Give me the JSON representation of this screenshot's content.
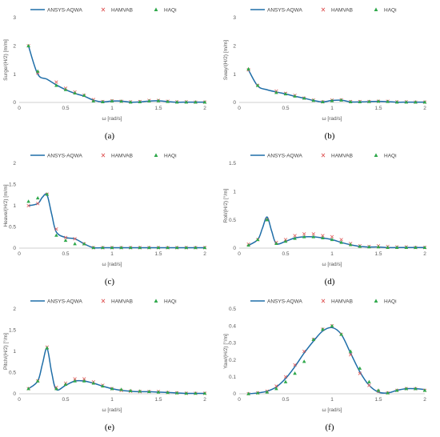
{
  "colors": {
    "aqwa": "#1f6ea8",
    "hamvab": "#e05a5a",
    "haqi": "#2ea84a",
    "axis": "#bfbfbf",
    "text": "#595959"
  },
  "legend": [
    "ANSYS-AQWA",
    "HAMVAB",
    "HAQi"
  ],
  "chart_data": [
    {
      "type": "line",
      "caption": "(a)",
      "xlabel": "ω [rad/s]",
      "ylabel": "Surge/(H/2) [m/m]",
      "xlim": [
        0,
        2
      ],
      "ylim": [
        0,
        3
      ],
      "xticks": [
        0,
        0.5,
        1,
        1.5,
        2
      ],
      "xtick_labels": [
        "0",
        "0.5",
        "1",
        "1.5",
        "2"
      ],
      "yticks": [
        0,
        1,
        2,
        3
      ],
      "ytick_labels": [
        "0",
        "1",
        "2",
        "3"
      ],
      "series": [
        {
          "name": "ANSYS-AQWA",
          "style": "line",
          "x": [
            0.1,
            0.2,
            0.3,
            0.4,
            0.5,
            0.6,
            0.7,
            0.8,
            0.9,
            1.0,
            1.1,
            1.2,
            1.3,
            1.4,
            1.5,
            1.6,
            1.7,
            1.8,
            1.9,
            2.0
          ],
          "y": [
            2.0,
            1.0,
            0.82,
            0.62,
            0.45,
            0.32,
            0.22,
            0.08,
            0.02,
            0.05,
            0.05,
            0.01,
            0.02,
            0.05,
            0.06,
            0.03,
            0.01,
            0.01,
            0.01,
            0.01
          ]
        },
        {
          "name": "HAMVAB",
          "style": "x",
          "x": [
            0.1,
            0.2,
            0.4,
            0.5,
            0.6,
            0.7,
            0.8,
            0.9,
            1.0,
            1.1,
            1.2,
            1.3,
            1.4,
            1.5,
            1.6,
            1.7,
            1.8,
            1.9,
            2.0
          ],
          "y": [
            2.0,
            1.05,
            0.72,
            0.5,
            0.37,
            0.25,
            0.1,
            0.03,
            0.06,
            0.04,
            0.02,
            0.03,
            0.07,
            0.07,
            0.04,
            0.02,
            0.02,
            0.01,
            0.01
          ]
        },
        {
          "name": "HAQi",
          "style": "triangle",
          "x": [
            0.1,
            0.2,
            0.4,
            0.5,
            0.6,
            0.7,
            0.8,
            0.9,
            1.0,
            1.1,
            1.2,
            1.3,
            1.4,
            1.5,
            1.6,
            1.7,
            1.8,
            1.9,
            2.0
          ],
          "y": [
            2.0,
            1.1,
            0.6,
            0.45,
            0.33,
            0.25,
            0.05,
            0.02,
            0.05,
            0.04,
            0.01,
            0.02,
            0.05,
            0.06,
            0.03,
            0.01,
            0.01,
            0.01,
            0.01
          ]
        }
      ]
    },
    {
      "type": "line",
      "caption": "(b)",
      "xlabel": "ω [rad/s]",
      "ylabel": "Sway/(H/2) [m/m]",
      "xlim": [
        0,
        2
      ],
      "ylim": [
        0,
        3
      ],
      "xticks": [
        0,
        0.5,
        1,
        1.5,
        2
      ],
      "xtick_labels": [
        "0",
        "0.5",
        "1",
        "1.5",
        "2"
      ],
      "yticks": [
        0,
        1,
        2,
        3
      ],
      "ytick_labels": [
        "0",
        "1",
        "2",
        "3"
      ],
      "series": [
        {
          "name": "ANSYS-AQWA",
          "style": "line",
          "x": [
            0.1,
            0.2,
            0.3,
            0.4,
            0.5,
            0.6,
            0.7,
            0.8,
            0.9,
            1.0,
            1.1,
            1.2,
            1.3,
            1.4,
            1.5,
            1.6,
            1.7,
            1.8,
            1.9,
            2.0
          ],
          "y": [
            1.15,
            0.58,
            0.45,
            0.37,
            0.3,
            0.22,
            0.15,
            0.07,
            0.02,
            0.07,
            0.08,
            0.02,
            0.02,
            0.03,
            0.04,
            0.03,
            0.01,
            0.01,
            0.01,
            0.01
          ]
        },
        {
          "name": "HAMVAB",
          "style": "x",
          "x": [
            0.1,
            0.2,
            0.4,
            0.5,
            0.6,
            0.7,
            0.8,
            0.9,
            1.0,
            1.1,
            1.2,
            1.3,
            1.4,
            1.5,
            1.6,
            1.7,
            1.8,
            1.9,
            2.0
          ],
          "y": [
            1.15,
            0.6,
            0.4,
            0.32,
            0.25,
            0.15,
            0.08,
            0.02,
            0.08,
            0.09,
            0.03,
            0.03,
            0.03,
            0.04,
            0.04,
            0.02,
            0.02,
            0.01,
            0.01
          ]
        },
        {
          "name": "HAQi",
          "style": "triangle",
          "x": [
            0.1,
            0.2,
            0.4,
            0.5,
            0.6,
            0.7,
            0.8,
            0.9,
            1.0,
            1.1,
            1.2,
            1.3,
            1.4,
            1.5,
            1.6,
            1.7,
            1.8,
            1.9,
            2.0
          ],
          "y": [
            1.18,
            0.6,
            0.35,
            0.3,
            0.22,
            0.15,
            0.07,
            0.02,
            0.06,
            0.08,
            0.02,
            0.02,
            0.03,
            0.04,
            0.03,
            0.01,
            0.01,
            0.01,
            0.01
          ]
        }
      ]
    },
    {
      "type": "line",
      "caption": "(c)",
      "xlabel": "ω [rad/s]",
      "ylabel": "Heave/(H/2) [m/m]",
      "xlim": [
        0,
        2
      ],
      "ylim": [
        0,
        2
      ],
      "xticks": [
        0,
        0.5,
        1,
        1.5,
        2
      ],
      "xtick_labels": [
        "0",
        "0.5",
        "1",
        "1.5",
        "2"
      ],
      "yticks": [
        0,
        0.5,
        1,
        1.5,
        2
      ],
      "ytick_labels": [
        "0",
        "0.5",
        "1",
        "1.5",
        "2"
      ],
      "series": [
        {
          "name": "ANSYS-AQWA",
          "style": "line",
          "x": [
            0.1,
            0.2,
            0.25,
            0.3,
            0.35,
            0.4,
            0.5,
            0.6,
            0.7,
            0.8,
            0.9,
            1.0,
            1.2,
            1.4,
            1.6,
            1.8,
            2.0
          ],
          "y": [
            1.0,
            1.05,
            1.2,
            1.25,
            0.8,
            0.38,
            0.25,
            0.22,
            0.1,
            0.01,
            0.01,
            0.01,
            0.01,
            0.01,
            0.01,
            0.01,
            0.01
          ]
        },
        {
          "name": "HAMVAB",
          "style": "x",
          "x": [
            0.1,
            0.2,
            0.3,
            0.4,
            0.5,
            0.6,
            0.7,
            0.8,
            0.9,
            1.0,
            1.1,
            1.2,
            1.3,
            1.4,
            1.5,
            1.6,
            1.7,
            1.8,
            1.9,
            2.0
          ],
          "y": [
            1.0,
            1.05,
            1.27,
            0.45,
            0.25,
            0.22,
            0.1,
            0.01,
            0.01,
            0.01,
            0.01,
            0.01,
            0.01,
            0.01,
            0.01,
            0.01,
            0.01,
            0.01,
            0.01,
            0.01
          ]
        },
        {
          "name": "HAQi",
          "style": "triangle",
          "x": [
            0.1,
            0.2,
            0.3,
            0.4,
            0.5,
            0.6,
            0.7,
            0.8,
            0.9,
            1.0,
            1.1,
            1.2,
            1.3,
            1.4,
            1.5,
            1.6,
            1.7,
            1.8,
            1.9,
            2.0
          ],
          "y": [
            1.1,
            1.18,
            1.27,
            0.3,
            0.18,
            0.1,
            0.1,
            0.01,
            0.01,
            0.01,
            0.01,
            0.01,
            0.01,
            0.01,
            0.01,
            0.01,
            0.01,
            0.01,
            0.01,
            0.01
          ]
        }
      ]
    },
    {
      "type": "line",
      "caption": "(d)",
      "xlabel": "ω [rad/s]",
      "ylabel": "Roll/(H/2) [°/m]",
      "xlim": [
        0,
        2
      ],
      "ylim": [
        0,
        1.5
      ],
      "xticks": [
        0,
        0.5,
        1,
        1.5,
        2
      ],
      "xtick_labels": [
        "0",
        "0.5",
        "1",
        "1.5",
        "2"
      ],
      "yticks": [
        0,
        0.5,
        1,
        1.5
      ],
      "ytick_labels": [
        "0",
        "0.5",
        "1",
        "1.5"
      ],
      "series": [
        {
          "name": "ANSYS-AQWA",
          "style": "line",
          "x": [
            0.1,
            0.2,
            0.25,
            0.3,
            0.35,
            0.4,
            0.5,
            0.6,
            0.7,
            0.8,
            0.9,
            1.0,
            1.1,
            1.2,
            1.3,
            1.4,
            1.5,
            1.6,
            1.7,
            1.8,
            1.9,
            2.0
          ],
          "y": [
            0.05,
            0.15,
            0.35,
            0.55,
            0.3,
            0.08,
            0.12,
            0.18,
            0.2,
            0.2,
            0.18,
            0.15,
            0.1,
            0.06,
            0.03,
            0.02,
            0.02,
            0.01,
            0.01,
            0.01,
            0.01,
            0.01
          ]
        },
        {
          "name": "HAMVAB",
          "style": "x",
          "x": [
            0.1,
            0.2,
            0.3,
            0.4,
            0.5,
            0.6,
            0.7,
            0.8,
            0.9,
            1.0,
            1.1,
            1.2,
            1.3,
            1.4,
            1.5,
            1.6,
            1.7,
            1.8,
            1.9,
            2.0
          ],
          "y": [
            0.07,
            0.15,
            0.5,
            0.1,
            0.15,
            0.22,
            0.25,
            0.25,
            0.22,
            0.2,
            0.15,
            0.08,
            0.04,
            0.03,
            0.04,
            0.03,
            0.02,
            0.02,
            0.01,
            0.01
          ]
        },
        {
          "name": "HAQi",
          "style": "triangle",
          "x": [
            0.1,
            0.2,
            0.3,
            0.4,
            0.5,
            0.6,
            0.7,
            0.8,
            0.9,
            1.0,
            1.1,
            1.2,
            1.3,
            1.4,
            1.5,
            1.6,
            1.7,
            1.8,
            1.9,
            2.0
          ],
          "y": [
            0.05,
            0.15,
            0.5,
            0.08,
            0.12,
            0.17,
            0.2,
            0.2,
            0.18,
            0.15,
            0.1,
            0.06,
            0.03,
            0.02,
            0.02,
            0.01,
            0.01,
            0.01,
            0.01,
            0.01
          ]
        }
      ]
    },
    {
      "type": "line",
      "caption": "(e)",
      "xlabel": "ω [rad/s]",
      "ylabel": "Pitch/(H/2) [°/m]",
      "xlim": [
        0,
        2
      ],
      "ylim": [
        0,
        2
      ],
      "xticks": [
        0,
        0.5,
        1,
        1.5,
        2
      ],
      "xtick_labels": [
        "0",
        "0.5",
        "1",
        "1.5",
        "2"
      ],
      "yticks": [
        0,
        0.5,
        1,
        1.5,
        2
      ],
      "ytick_labels": [
        "0",
        "0.5",
        "1",
        "1.5",
        "2"
      ],
      "series": [
        {
          "name": "ANSYS-AQWA",
          "style": "line",
          "x": [
            0.1,
            0.2,
            0.25,
            0.3,
            0.35,
            0.4,
            0.5,
            0.6,
            0.7,
            0.8,
            0.9,
            1.0,
            1.1,
            1.2,
            1.3,
            1.4,
            1.5,
            1.6,
            1.7,
            1.8,
            1.9,
            2.0
          ],
          "y": [
            0.12,
            0.3,
            0.7,
            1.07,
            0.5,
            0.1,
            0.2,
            0.3,
            0.3,
            0.25,
            0.18,
            0.12,
            0.08,
            0.06,
            0.05,
            0.05,
            0.04,
            0.03,
            0.02,
            0.01,
            0.01,
            0.01
          ]
        },
        {
          "name": "HAMVAB",
          "style": "x",
          "x": [
            0.1,
            0.2,
            0.3,
            0.4,
            0.5,
            0.6,
            0.7,
            0.8,
            0.9,
            1.0,
            1.1,
            1.2,
            1.3,
            1.4,
            1.5,
            1.6,
            1.7,
            1.8,
            1.9,
            2.0
          ],
          "y": [
            0.12,
            0.3,
            1.1,
            0.15,
            0.25,
            0.35,
            0.35,
            0.28,
            0.2,
            0.12,
            0.08,
            0.06,
            0.05,
            0.05,
            0.05,
            0.03,
            0.02,
            0.01,
            0.01,
            0.01
          ]
        },
        {
          "name": "HAQi",
          "style": "triangle",
          "x": [
            0.1,
            0.2,
            0.3,
            0.4,
            0.5,
            0.6,
            0.7,
            0.8,
            0.9,
            1.0,
            1.1,
            1.2,
            1.3,
            1.4,
            1.5,
            1.6,
            1.7,
            1.8,
            1.9,
            2.0
          ],
          "y": [
            0.12,
            0.3,
            1.08,
            0.12,
            0.22,
            0.3,
            0.3,
            0.25,
            0.18,
            0.12,
            0.1,
            0.07,
            0.06,
            0.05,
            0.04,
            0.03,
            0.02,
            0.01,
            0.01,
            0.01
          ]
        }
      ]
    },
    {
      "type": "line",
      "caption": "(f)",
      "xlabel": "ω [rad/s]",
      "ylabel": "Yaw/(H/2) [°/m]",
      "xlim": [
        0,
        2
      ],
      "ylim": [
        0,
        0.5
      ],
      "xticks": [
        0,
        0.5,
        1,
        1.5,
        2
      ],
      "xtick_labels": [
        "0",
        "0.5",
        "1",
        "1.5",
        "2"
      ],
      "yticks": [
        0,
        0.1,
        0.2,
        0.3,
        0.4,
        0.5
      ],
      "ytick_labels": [
        "0",
        "0.1",
        "0.2",
        "0.3",
        "0.4",
        "0.5"
      ],
      "series": [
        {
          "name": "ANSYS-AQWA",
          "style": "line",
          "x": [
            0.1,
            0.2,
            0.3,
            0.4,
            0.5,
            0.6,
            0.7,
            0.8,
            0.9,
            1.0,
            1.1,
            1.2,
            1.3,
            1.4,
            1.5,
            1.6,
            1.7,
            1.8,
            1.9,
            2.0
          ],
          "y": [
            0.0,
            0.005,
            0.015,
            0.04,
            0.09,
            0.16,
            0.24,
            0.31,
            0.37,
            0.39,
            0.35,
            0.24,
            0.13,
            0.05,
            0.01,
            0.005,
            0.02,
            0.03,
            0.03,
            0.025
          ]
        },
        {
          "name": "HAMVAB",
          "style": "x",
          "x": [
            0.1,
            0.2,
            0.3,
            0.4,
            0.5,
            0.6,
            0.7,
            0.8,
            0.9,
            1.0,
            1.1,
            1.2,
            1.3,
            1.4,
            1.5,
            1.6,
            1.7,
            1.8,
            1.9,
            2.0
          ],
          "y": [
            0.0,
            0.005,
            0.015,
            0.045,
            0.1,
            0.17,
            0.25,
            0.32,
            0.38,
            0.4,
            0.35,
            0.23,
            0.12,
            0.05,
            0.015,
            0.005,
            0.02,
            0.03,
            0.03,
            0.02
          ]
        },
        {
          "name": "HAQi",
          "style": "triangle",
          "x": [
            0.1,
            0.2,
            0.3,
            0.4,
            0.5,
            0.6,
            0.7,
            0.8,
            0.9,
            1.0,
            1.1,
            1.2,
            1.3,
            1.4,
            1.5,
            1.6,
            1.7,
            1.8,
            1.9,
            2.0
          ],
          "y": [
            0.0,
            0.005,
            0.01,
            0.03,
            0.07,
            0.12,
            0.19,
            0.32,
            0.38,
            0.4,
            0.35,
            0.25,
            0.15,
            0.07,
            0.02,
            0.005,
            0.02,
            0.03,
            0.03,
            0.02
          ]
        }
      ]
    }
  ]
}
